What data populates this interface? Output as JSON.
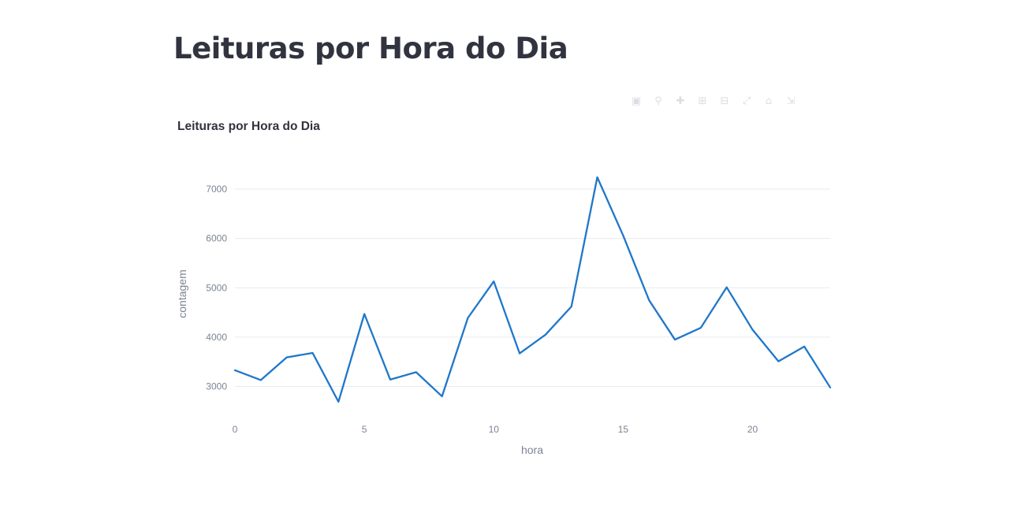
{
  "page": {
    "title": "Leituras por Hora do Dia"
  },
  "modebar": {
    "icons": [
      "camera-icon",
      "zoom-icon",
      "pan-icon",
      "zoom-in-icon",
      "zoom-out-icon",
      "autoscale-icon",
      "reset-axes-icon",
      "fullscreen-icon"
    ]
  },
  "chart_data": {
    "type": "line",
    "title": "Leituras por Hora do Dia",
    "xlabel": "hora",
    "ylabel": "contagem",
    "x": [
      0,
      1,
      2,
      3,
      4,
      5,
      6,
      7,
      8,
      9,
      10,
      11,
      12,
      13,
      14,
      15,
      16,
      17,
      18,
      19,
      20,
      21,
      22,
      23
    ],
    "series": [
      {
        "values": [
          3330,
          3130,
          3590,
          3680,
          2690,
          4470,
          3140,
          3290,
          2800,
          4390,
          5130,
          3670,
          4050,
          4620,
          7240,
          6060,
          4750,
          3950,
          4190,
          5010,
          4150,
          3510,
          3810,
          2980
        ],
        "color": "#1f77c9"
      }
    ],
    "xlim": [
      0,
      23
    ],
    "ylim": [
      2450,
      7400
    ],
    "xticks": [
      0,
      5,
      10,
      15,
      20
    ],
    "yticks": [
      3000,
      4000,
      5000,
      6000,
      7000
    ],
    "xtick_labels": [
      "0",
      "5",
      "10",
      "15",
      "20"
    ],
    "ytick_labels": [
      "3000",
      "4000",
      "5000",
      "6000",
      "7000"
    ],
    "grid": true,
    "colors": {
      "line": "#1f77c9",
      "grid": "#e8eaef",
      "tick_text": "#7b8493",
      "title_text": "#31333f"
    }
  }
}
